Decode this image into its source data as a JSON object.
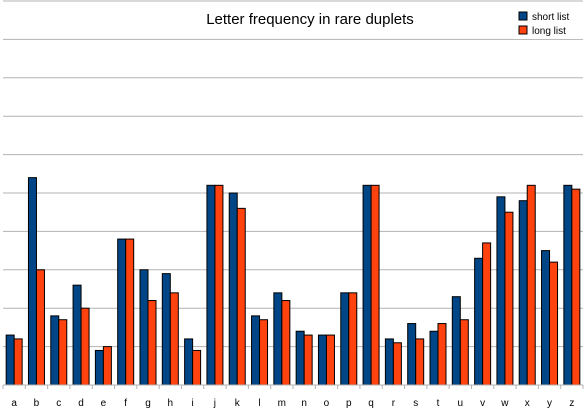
{
  "chart_data": {
    "type": "bar",
    "title": "Letter frequency in rare duplets",
    "xlabel": "",
    "ylabel": "",
    "categories": [
      "a",
      "b",
      "c",
      "d",
      "e",
      "f",
      "g",
      "h",
      "i",
      "j",
      "k",
      "l",
      "m",
      "n",
      "o",
      "p",
      "q",
      "r",
      "s",
      "t",
      "u",
      "v",
      "w",
      "x",
      "y",
      "z"
    ],
    "ylim": [
      0,
      100
    ],
    "grid": true,
    "legend": "top-right",
    "series": [
      {
        "name": "short list",
        "color": "#004586",
        "values": [
          13,
          54,
          18,
          26,
          9,
          38,
          30,
          29,
          12,
          52,
          50,
          18,
          24,
          14,
          13,
          24,
          52,
          12,
          16,
          14,
          23,
          33,
          49,
          48,
          35,
          52
        ]
      },
      {
        "name": "long list",
        "color": "#ff420e",
        "values": [
          12,
          30,
          17,
          20,
          10,
          38,
          22,
          24,
          9,
          52,
          46,
          17,
          22,
          13,
          13,
          24,
          52,
          11,
          12,
          16,
          17,
          37,
          45,
          52,
          32,
          51
        ]
      }
    ]
  }
}
